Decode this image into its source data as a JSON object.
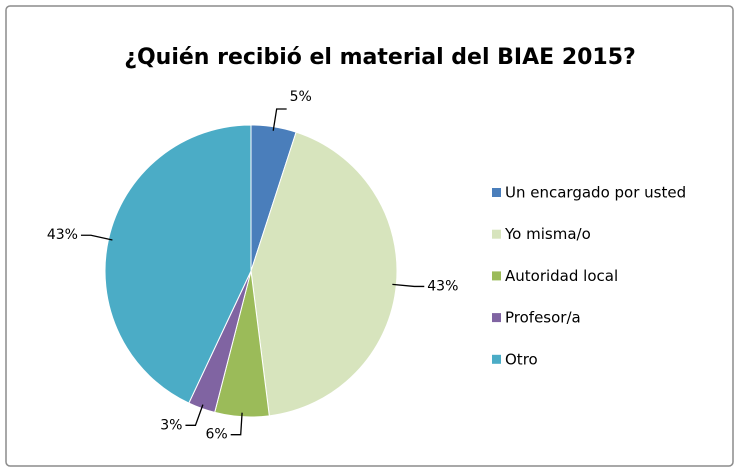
{
  "chart_data": {
    "type": "pie",
    "title": "¿Quién recibió el material del BIAE 2015?",
    "categories": [
      "Un encargado por usted",
      "Yo misma/o",
      "Autoridad local",
      "Profesor/a",
      "Otro"
    ],
    "values": [
      5,
      43,
      6,
      3,
      43
    ],
    "value_labels": [
      "5%",
      "43%",
      "6%",
      "3%",
      "43%"
    ],
    "colors": [
      "#4a7ebb",
      "#d7e4bd",
      "#9bbb59",
      "#8064a2",
      "#4bacc6"
    ],
    "legend": "right"
  }
}
